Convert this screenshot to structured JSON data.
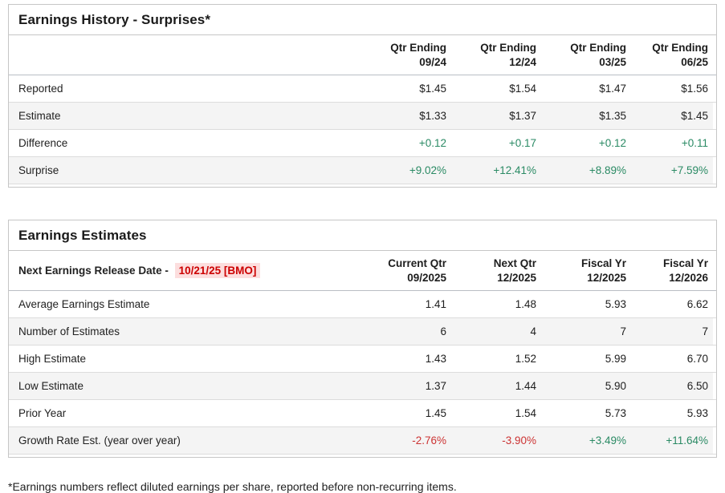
{
  "page": {
    "footnote": "*Earnings numbers reflect diluted earnings per share, reported before non-recurring items."
  },
  "colors": {
    "positive_green": "#2a8a64",
    "negative_red": "#cc3333",
    "release_date_red": "#cc0000",
    "release_date_highlight": "#fcdede",
    "stripe_gray": "#f4f4f4",
    "border_gray": "#c6c6c6"
  },
  "tables": [
    {
      "title": "Earnings History - Surprises*",
      "header_label": "",
      "header_date": "",
      "columns": [
        "Qtr Ending\n09/24",
        "Qtr Ending\n12/24",
        "Qtr Ending\n03/25",
        "Qtr Ending\n06/25"
      ],
      "rows": [
        {
          "label": "Reported",
          "values": [
            "$1.45",
            "$1.54",
            "$1.47",
            "$1.56"
          ],
          "tones": [
            "normal",
            "normal",
            "normal",
            "normal"
          ],
          "striped": false
        },
        {
          "label": "Estimate",
          "values": [
            "$1.33",
            "$1.37",
            "$1.35",
            "$1.45"
          ],
          "tones": [
            "normal",
            "normal",
            "normal",
            "normal"
          ],
          "striped": true
        },
        {
          "label": "Difference",
          "values": [
            "+0.12",
            "+0.17",
            "+0.12",
            "+0.11"
          ],
          "tones": [
            "green",
            "green",
            "green",
            "green"
          ],
          "striped": false
        },
        {
          "label": "Surprise",
          "values": [
            "+9.02%",
            "+12.41%",
            "+8.89%",
            "+7.59%"
          ],
          "tones": [
            "green",
            "green",
            "green",
            "green"
          ],
          "striped": true
        }
      ]
    },
    {
      "title": "Earnings Estimates",
      "header_label": "Next Earnings Release Date -",
      "header_date": "10/21/25 [BMO]",
      "columns": [
        "Current Qtr\n09/2025",
        "Next Qtr\n12/2025",
        "Fiscal Yr\n12/2025",
        "Fiscal Yr\n12/2026"
      ],
      "rows": [
        {
          "label": "Average Earnings Estimate",
          "values": [
            "1.41",
            "1.48",
            "5.93",
            "6.62"
          ],
          "tones": [
            "normal",
            "normal",
            "normal",
            "normal"
          ],
          "striped": false
        },
        {
          "label": "Number of Estimates",
          "values": [
            "6",
            "4",
            "7",
            "7"
          ],
          "tones": [
            "normal",
            "normal",
            "normal",
            "normal"
          ],
          "striped": true
        },
        {
          "label": "High Estimate",
          "values": [
            "1.43",
            "1.52",
            "5.99",
            "6.70"
          ],
          "tones": [
            "normal",
            "normal",
            "normal",
            "normal"
          ],
          "striped": false
        },
        {
          "label": "Low Estimate",
          "values": [
            "1.37",
            "1.44",
            "5.90",
            "6.50"
          ],
          "tones": [
            "normal",
            "normal",
            "normal",
            "normal"
          ],
          "striped": true
        },
        {
          "label": "Prior Year",
          "values": [
            "1.45",
            "1.54",
            "5.73",
            "5.93"
          ],
          "tones": [
            "normal",
            "normal",
            "normal",
            "normal"
          ],
          "striped": false
        },
        {
          "label": "Growth Rate Est. (year over year)",
          "values": [
            "-2.76%",
            "-3.90%",
            "+3.49%",
            "+11.64%"
          ],
          "tones": [
            "red",
            "red",
            "green",
            "green"
          ],
          "striped": true
        }
      ]
    }
  ]
}
